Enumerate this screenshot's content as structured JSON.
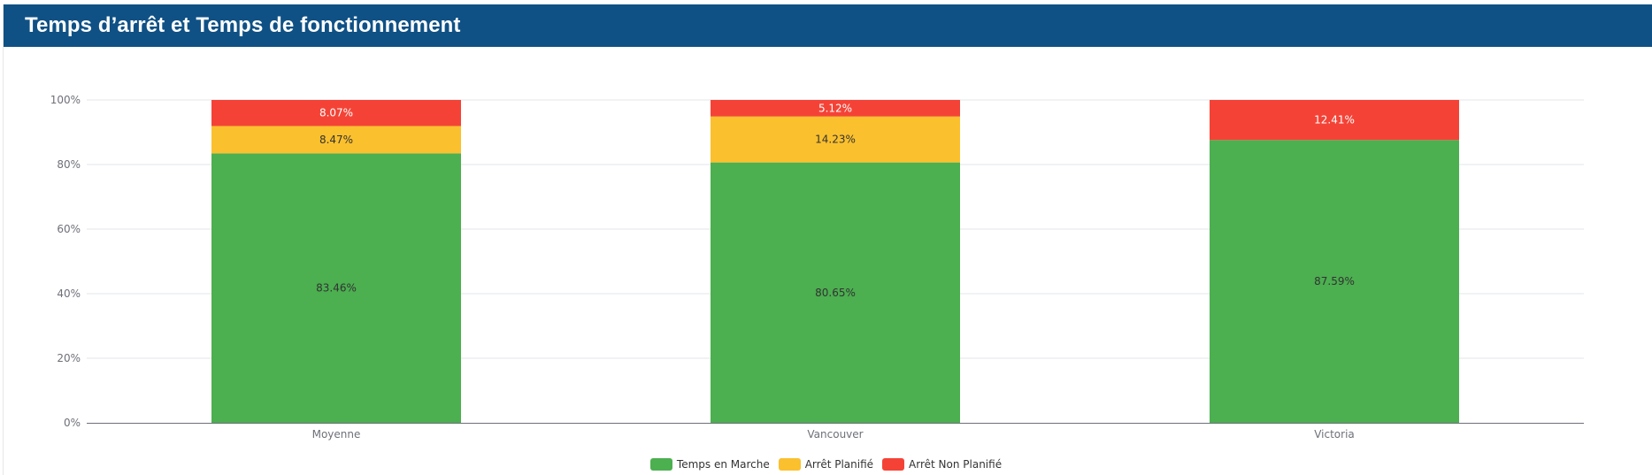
{
  "header": {
    "title": "Temps d’arrêt et Temps de fonctionnement"
  },
  "colors": {
    "header_bg": "#0f5185",
    "running": "#4caf50",
    "planned": "#fbc02d",
    "unplanned": "#f44336"
  },
  "chart_data": {
    "type": "bar",
    "stacked": true,
    "title": "",
    "xlabel": "",
    "ylabel": "",
    "ylim": [
      0,
      100
    ],
    "y_ticks": [
      "0%",
      "20%",
      "40%",
      "60%",
      "80%",
      "100%"
    ],
    "categories": [
      "Moyenne",
      "Vancouver",
      "Victoria"
    ],
    "series": [
      {
        "name": "Temps en Marche",
        "color": "#4caf50",
        "values": [
          83.46,
          80.65,
          87.59
        ],
        "labels": [
          "83.46%",
          "80.65%",
          "87.59%"
        ]
      },
      {
        "name": "Arrêt Planifié",
        "color": "#fbc02d",
        "values": [
          8.47,
          14.23,
          0
        ],
        "labels": [
          "8.47%",
          "14.23%",
          ""
        ]
      },
      {
        "name": "Arrêt Non Planifié",
        "color": "#f44336",
        "values": [
          8.07,
          5.12,
          12.41
        ],
        "labels": [
          "8.07%",
          "5.12%",
          "12.41%"
        ]
      }
    ],
    "grid": true,
    "legend_position": "bottom-center"
  }
}
